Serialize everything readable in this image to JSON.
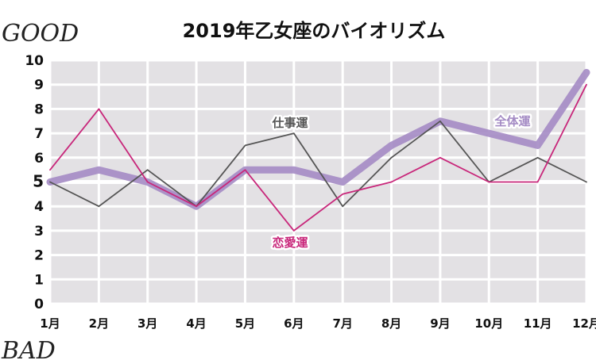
{
  "chart_data": {
    "type": "line",
    "title": "2019年乙女座のバイオリズム",
    "corner_labels": {
      "top": "GOOD",
      "bottom": "BAD"
    },
    "categories": [
      "1月",
      "2月",
      "3月",
      "4月",
      "5月",
      "6月",
      "7月",
      "8月",
      "9月",
      "10月",
      "11月",
      "12月"
    ],
    "ylim": [
      0,
      10
    ],
    "yticks": [
      0,
      1,
      2,
      3,
      4,
      5,
      6,
      7,
      8,
      9,
      10
    ],
    "grid": true,
    "series": [
      {
        "name": "全体運",
        "color": "#a48bc4",
        "values": [
          5.0,
          5.5,
          5.0,
          4.0,
          5.5,
          5.5,
          5.0,
          6.5,
          7.5,
          7.0,
          6.5,
          9.5
        ]
      },
      {
        "name": "仕事運",
        "color": "#555555",
        "values": [
          5.0,
          4.0,
          5.5,
          4.0,
          6.5,
          7.0,
          4.0,
          6.0,
          7.5,
          5.0,
          6.0,
          5.0
        ]
      },
      {
        "name": "恋愛運",
        "color": "#c8267a",
        "values": [
          5.5,
          8.0,
          5.0,
          4.0,
          5.5,
          3.0,
          4.5,
          5.0,
          6.0,
          5.0,
          5.0,
          9.0
        ]
      }
    ]
  }
}
